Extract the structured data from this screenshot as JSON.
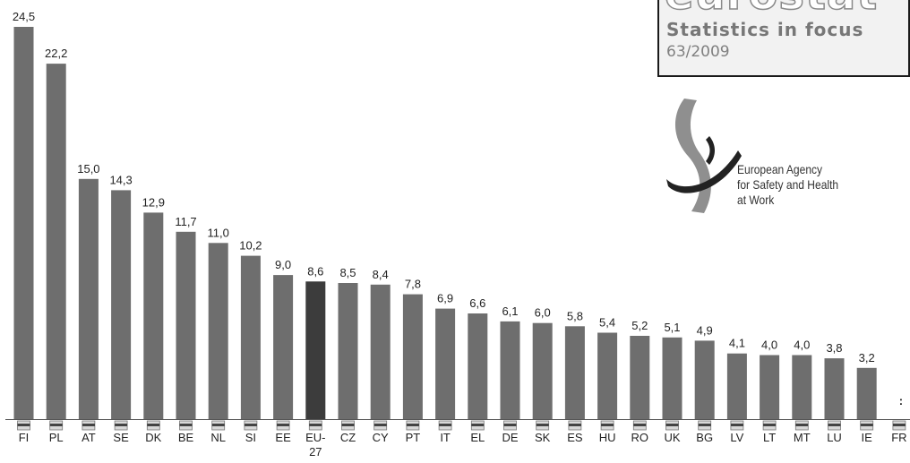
{
  "header": {
    "brand": "eurostat",
    "series_title": "Statistics in focus",
    "issue": "63/2009"
  },
  "agency": {
    "name_lines": [
      "European Agency",
      "for Safety and Health",
      "at Work"
    ]
  },
  "colors": {
    "bar": "#6e6e6e",
    "bar_eu27": "#3c3c3c",
    "text": "#222222",
    "baseline": "#555555"
  },
  "chart_data": {
    "type": "bar",
    "title": "",
    "xlabel": "",
    "ylabel": "",
    "categories": [
      "FI",
      "PL",
      "AT",
      "SE",
      "DK",
      "BE",
      "NL",
      "SI",
      "EE",
      "EU-27",
      "CZ",
      "CY",
      "PT",
      "IT",
      "EL",
      "DE",
      "SK",
      "ES",
      "HU",
      "RO",
      "UK",
      "BG",
      "LV",
      "LT",
      "MT",
      "LU",
      "IE",
      "FR"
    ],
    "values": [
      24.5,
      22.2,
      15.0,
      14.3,
      12.9,
      11.7,
      11.0,
      10.2,
      9.0,
      8.6,
      8.5,
      8.4,
      7.8,
      6.9,
      6.6,
      6.1,
      6.0,
      5.8,
      5.4,
      5.2,
      5.1,
      4.9,
      4.1,
      4.0,
      4.0,
      3.8,
      3.2,
      null
    ],
    "value_labels": [
      "24,5",
      "22,2",
      "15,0",
      "14,3",
      "12,9",
      "11,7",
      "11,0",
      "10,2",
      "9,0",
      "8,6",
      "8,5",
      "8,4",
      "7,8",
      "6,9",
      "6,6",
      "6,1",
      "6,0",
      "5,8",
      "5,4",
      "5,2",
      "5,1",
      "4,9",
      "4,1",
      "4,0",
      "4,0",
      "3,8",
      "3,2",
      ":"
    ],
    "highlight": "EU-27",
    "ylim": [
      0,
      25
    ],
    "grid": false,
    "legend": "none"
  }
}
